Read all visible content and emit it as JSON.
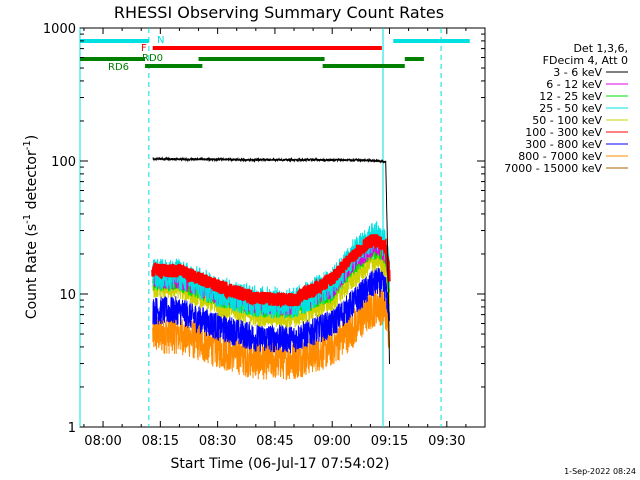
{
  "chart_data": {
    "type": "line",
    "title": "RHESSI Observing Summary Count Rates",
    "xlabel": "Start Time (06-Jul-17 07:54:02)",
    "ylabel_main": "Count Rate (s",
    "ylabel_sup1": "-1",
    "ylabel_mid": " detector",
    "ylabel_sup2": "-1",
    "ylabel_end": ")",
    "y_scale": "log",
    "ylim": [
      1,
      1000
    ],
    "xlim_minutes": [
      -6.03,
      100
    ],
    "x_ticks": [
      {
        "label": "08:00",
        "min": 0
      },
      {
        "label": "08:15",
        "min": 15
      },
      {
        "label": "08:30",
        "min": 30
      },
      {
        "label": "08:45",
        "min": 45
      },
      {
        "label": "09:00",
        "min": 60
      },
      {
        "label": "09:15",
        "min": 75
      },
      {
        "label": "09:30",
        "min": 90
      }
    ],
    "y_ticks": [
      {
        "label": "1",
        "value": 1
      },
      {
        "label": "10",
        "value": 10
      },
      {
        "label": "100",
        "value": 100
      },
      {
        "label": "1000",
        "value": 1000
      }
    ],
    "legend": {
      "placement": "right",
      "header": [
        "Det 1,3,6,",
        "FDecim 4, Att 0"
      ]
    },
    "series": [
      {
        "name": "3 - 6 keV",
        "color": "#000000",
        "x": [
          13,
          20,
          30,
          40,
          50,
          60,
          70,
          74,
          74.4,
          75
        ],
        "y": [
          104,
          103,
          103,
          102,
          102,
          102,
          101,
          99,
          30,
          3
        ]
      },
      {
        "name": "6 - 12 keV",
        "color": "#e000e0",
        "x": [
          13,
          20,
          30,
          40,
          50,
          60,
          65,
          70,
          72,
          74,
          75
        ],
        "y": [
          13,
          13,
          10,
          8.4,
          8.2,
          11,
          17,
          22,
          23,
          20,
          13
        ]
      },
      {
        "name": "12 - 25 keV",
        "color": "#00e000",
        "x": [
          13,
          20,
          30,
          40,
          50,
          60,
          65,
          70,
          72,
          74,
          75
        ],
        "y": [
          12.5,
          12.5,
          9.6,
          8,
          7.8,
          10.5,
          16,
          21,
          22,
          19,
          12
        ]
      },
      {
        "name": "25 - 50 keV",
        "color": "#00e0e0",
        "x": [
          13,
          20,
          30,
          40,
          50,
          60,
          65,
          70,
          72,
          74,
          75
        ],
        "y": [
          14,
          14,
          10.5,
          8.8,
          8.5,
          12,
          19,
          26,
          28,
          23,
          14
        ]
      },
      {
        "name": "50 - 100 keV",
        "color": "#d0d000",
        "x": [
          13,
          20,
          30,
          40,
          50,
          60,
          65,
          70,
          72,
          74,
          75
        ],
        "y": [
          11,
          11,
          8.2,
          6.8,
          6.6,
          8.8,
          12.5,
          17,
          18,
          16,
          10
        ]
      },
      {
        "name": "100 - 300 keV",
        "color": "#ff0000",
        "x": [
          13,
          20,
          30,
          40,
          50,
          60,
          65,
          70,
          72,
          74,
          75
        ],
        "y": [
          15,
          15,
          11.5,
          9.3,
          9,
          13,
          19,
          25,
          25,
          22,
          13
        ]
      },
      {
        "name": "300 - 800 keV",
        "color": "#0000ff",
        "x": [
          13,
          20,
          30,
          40,
          50,
          60,
          65,
          70,
          72,
          74,
          75
        ],
        "y": [
          7.5,
          7.5,
          5.7,
          4.7,
          4.6,
          6,
          8.3,
          11.5,
          12.5,
          11,
          7
        ]
      },
      {
        "name": "800 - 7000 keV",
        "color": "#ff8c00",
        "x": [
          13,
          20,
          30,
          40,
          50,
          60,
          65,
          70,
          72,
          74,
          75
        ],
        "y": [
          5,
          5,
          3.9,
          3.2,
          3.2,
          4,
          5.4,
          7.5,
          8.5,
          7.5,
          5
        ]
      },
      {
        "name": "7000 - 15000 keV",
        "color": "#b06000",
        "x": [],
        "y": []
      }
    ],
    "annotations": [
      {
        "label": "N",
        "color": "#00e0e0",
        "segments": [
          [
            -6.03,
            12
          ],
          [
            76,
            96
          ]
        ]
      },
      {
        "label": "F",
        "color": "#ff0000",
        "segments": [
          [
            13,
            73
          ]
        ]
      },
      {
        "label": "RD0",
        "color": "#008000",
        "segments": [
          [
            -6.03,
            11
          ],
          [
            25,
            58
          ],
          [
            79,
            84
          ]
        ]
      },
      {
        "label": "RD6",
        "color": "#008000",
        "segments": [
          [
            11,
            26
          ],
          [
            57.5,
            79
          ]
        ]
      }
    ],
    "saa_lines_solid": [
      -6.03,
      73.3
    ],
    "saa_lines_dashed": [
      12,
      88.5
    ]
  },
  "footer": {
    "date": "1-Sep-2022 08:24"
  }
}
